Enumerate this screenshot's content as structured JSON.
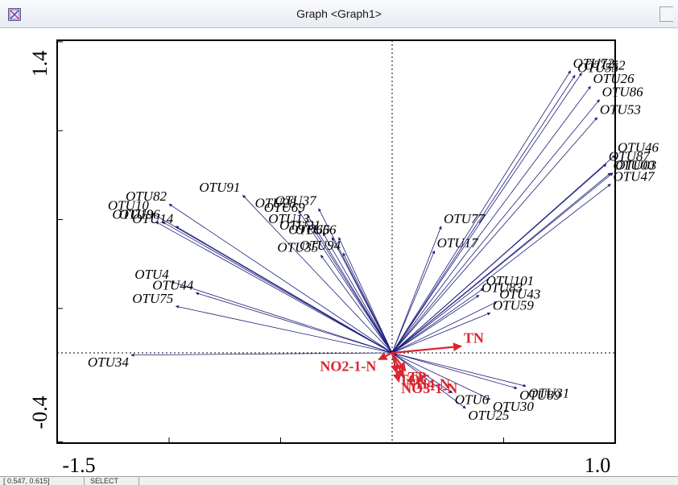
{
  "window": {
    "title": "Graph <Graph1>"
  },
  "status": {
    "coords": "[ 0.547, 0.615]",
    "mode": "SELECT"
  },
  "colors": {
    "species": "#1c1c7a",
    "env": "#d9262f",
    "frame": "#000000",
    "background": "#ffffff"
  },
  "chart_data": {
    "type": "scatter",
    "subtype": "biplot",
    "xlim": [
      -1.5,
      1.0
    ],
    "ylim": [
      -0.4,
      1.4
    ],
    "x_tick_labels": [
      "-1.5",
      "1.0"
    ],
    "y_tick_labels": [
      "1.4",
      "-0.4"
    ],
    "grid": false,
    "reference_lines": "dashed lines through origin",
    "species_vectors": [
      {
        "label": "OTU82",
        "x": -1.0,
        "y": 0.67
      },
      {
        "label": "OTU10",
        "x": -1.08,
        "y": 0.63
      },
      {
        "label": "OTU19",
        "x": -1.06,
        "y": 0.59
      },
      {
        "label": "OTU96",
        "x": -1.03,
        "y": 0.59
      },
      {
        "label": "OTU14",
        "x": -0.97,
        "y": 0.57
      },
      {
        "label": "OTU91",
        "x": -0.67,
        "y": 0.71
      },
      {
        "label": "OTU28",
        "x": -0.42,
        "y": 0.64
      },
      {
        "label": "OTU69",
        "x": -0.38,
        "y": 0.62
      },
      {
        "label": "OTU37",
        "x": -0.33,
        "y": 0.65
      },
      {
        "label": "OTU13",
        "x": -0.36,
        "y": 0.57
      },
      {
        "label": "OTU21",
        "x": -0.31,
        "y": 0.54
      },
      {
        "label": "OTU66",
        "x": -0.27,
        "y": 0.52
      },
      {
        "label": "OTU56",
        "x": -0.24,
        "y": 0.52
      },
      {
        "label": "OTU94",
        "x": -0.22,
        "y": 0.45
      },
      {
        "label": "OTU35",
        "x": -0.32,
        "y": 0.44
      },
      {
        "label": "OTU4",
        "x": -0.99,
        "y": 0.32
      },
      {
        "label": "OTU44",
        "x": -0.88,
        "y": 0.27
      },
      {
        "label": "OTU75",
        "x": -0.97,
        "y": 0.21
      },
      {
        "label": "OTU34",
        "x": -1.17,
        "y": -0.01
      },
      {
        "label": "OTU77",
        "x": 0.22,
        "y": 0.57
      },
      {
        "label": "OTU17",
        "x": 0.19,
        "y": 0.46
      },
      {
        "label": "OTU101",
        "x": 0.41,
        "y": 0.29
      },
      {
        "label": "OTU83",
        "x": 0.39,
        "y": 0.26
      },
      {
        "label": "OTU43",
        "x": 0.47,
        "y": 0.23
      },
      {
        "label": "OTU59",
        "x": 0.44,
        "y": 0.18
      },
      {
        "label": "OTU46",
        "x": 1.0,
        "y": 0.89
      },
      {
        "label": "OTU87",
        "x": 0.96,
        "y": 0.85
      },
      {
        "label": "OTU00",
        "x": 0.98,
        "y": 0.81
      },
      {
        "label": "OTU03",
        "x": 0.99,
        "y": 0.81
      },
      {
        "label": "OTU47",
        "x": 0.98,
        "y": 0.76
      },
      {
        "label": "OTU53",
        "x": 0.92,
        "y": 1.06
      },
      {
        "label": "OTU86",
        "x": 0.93,
        "y": 1.14
      },
      {
        "label": "OTU52",
        "x": 0.85,
        "y": 1.26
      },
      {
        "label": "OTU55",
        "x": 0.82,
        "y": 1.25
      },
      {
        "label": "OTU72",
        "x": 0.8,
        "y": 1.27
      },
      {
        "label": "OTU26",
        "x": 0.89,
        "y": 1.2
      },
      {
        "label": "OTU30",
        "x": 0.44,
        "y": -0.21
      },
      {
        "label": "OTU25",
        "x": 0.33,
        "y": -0.25
      },
      {
        "label": "OTU6",
        "x": 0.27,
        "y": -0.18
      },
      {
        "label": "OTU89",
        "x": 0.56,
        "y": -0.16
      },
      {
        "label": "OTU31",
        "x": 0.6,
        "y": -0.15
      }
    ],
    "env_vectors": [
      {
        "label": "TN",
        "x": 0.31,
        "y": 0.03
      },
      {
        "label": "TP",
        "x": 0.06,
        "y": -0.08
      },
      {
        "label": "TOC",
        "x": 0.02,
        "y": -0.09
      },
      {
        "label": "NH4-N",
        "x": 0.05,
        "y": -0.11
      },
      {
        "label": "NO3-1-N",
        "x": 0.03,
        "y": -0.13
      },
      {
        "label": "NO2-1-N",
        "x": -0.06,
        "y": -0.03
      }
    ]
  }
}
